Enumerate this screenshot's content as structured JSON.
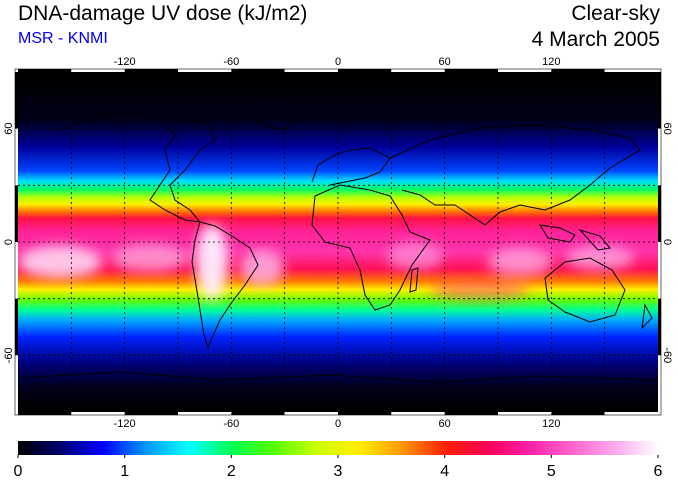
{
  "header": {
    "title": "DNA-damage UV dose (kJ/m2)",
    "subtitle": "MSR - KNMI",
    "mode": "Clear-sky",
    "date": "4 March 2005"
  },
  "map": {
    "projection": "equirectangular",
    "lon_range": [
      -180,
      180
    ],
    "lat_range": [
      -90,
      90
    ],
    "gridlines": true,
    "lon_ticks": [
      -120,
      -60,
      0,
      60,
      120
    ],
    "lon_tick_labels": [
      "-120",
      "-60",
      "0",
      "60",
      "120"
    ],
    "lat_ticks": [
      60,
      0,
      -60
    ],
    "lat_tick_labels": [
      "60",
      "0",
      "-60"
    ],
    "lat_ticks_right": [
      60,
      0,
      -60
    ],
    "lat_tick_labels_right": [
      "60",
      "0",
      "-60"
    ]
  },
  "colorbar": {
    "min": 0,
    "max": 6,
    "tick_labels": [
      "0",
      "1",
      "2",
      "3",
      "4",
      "5",
      "6"
    ],
    "colors": [
      "#000000",
      "#00006e",
      "#0000ff",
      "#0099ff",
      "#00ffff",
      "#00ff55",
      "#55ff00",
      "#ccff00",
      "#ffee00",
      "#ff9900",
      "#ff2200",
      "#ff0055",
      "#ff22aa",
      "#ff66cc",
      "#ffaaee",
      "#ffffff"
    ]
  }
}
